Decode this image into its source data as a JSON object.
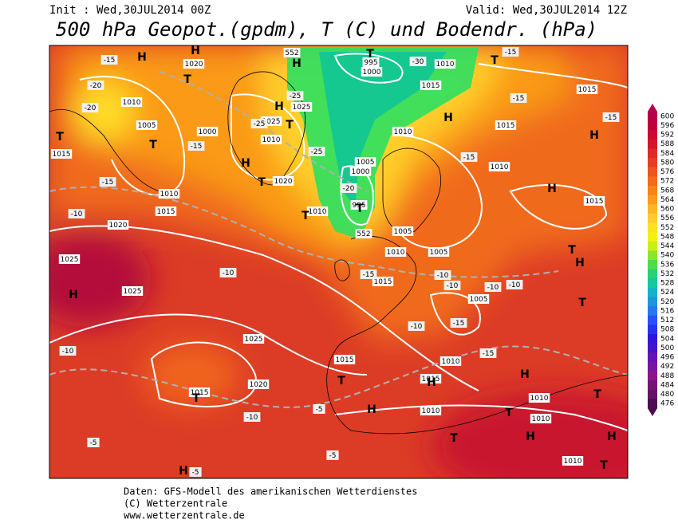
{
  "header": {
    "init": "Init : Wed,30JUL2014 00Z",
    "valid": "Valid: Wed,30JUL2014 12Z",
    "title": "500 hPa Geopot.(gpdm), T (C) und Bodendr. (hPa)"
  },
  "colorbar": {
    "labels": [
      "600",
      "596",
      "592",
      "588",
      "584",
      "580",
      "576",
      "572",
      "568",
      "564",
      "560",
      "556",
      "552",
      "548",
      "544",
      "540",
      "536",
      "532",
      "528",
      "524",
      "520",
      "516",
      "512",
      "508",
      "504",
      "500",
      "496",
      "492",
      "488",
      "484",
      "480",
      "476"
    ],
    "colors": [
      "#b4004a",
      "#c0003c",
      "#cc0a32",
      "#d6142a",
      "#de2a28",
      "#e63e24",
      "#ee5420",
      "#f46a1a",
      "#f88214",
      "#fc9a18",
      "#ffb424",
      "#ffcc2c",
      "#ffe020",
      "#f4f010",
      "#c8f014",
      "#8ce628",
      "#50dc46",
      "#28d278",
      "#14c8a0",
      "#14b4c8",
      "#1e96dc",
      "#2878f0",
      "#2850ff",
      "#2832f0",
      "#3214dc",
      "#4614c8",
      "#6414b4",
      "#7814a0",
      "#8c148c",
      "#781478",
      "#641464",
      "#500a50"
    ]
  },
  "map": {
    "isobar_labels": [
      "1020",
      "1010",
      "1005",
      "1000",
      "1010",
      "1025",
      "1025",
      "1020",
      "1010",
      "1015",
      "1020",
      "1025",
      "1025",
      "1025",
      "1020",
      "1015",
      "995",
      "1000",
      "1010",
      "1015",
      "1010",
      "1005",
      "1000",
      "995",
      "1010",
      "1005",
      "1010",
      "1005",
      "1015",
      "1005",
      "1015",
      "1015",
      "1010",
      "1010",
      "1010",
      "1010",
      "1010",
      "1015",
      "1010",
      "1015",
      "1015",
      "1015",
      "552",
      "552"
    ],
    "temperature_labels": [
      "-15",
      "-20",
      "-20",
      "-15",
      "-10",
      "-10",
      "-10",
      "-10",
      "-5",
      "-5",
      "-5",
      "-30",
      "-25",
      "-25",
      "-25",
      "-20",
      "-15",
      "-10",
      "-10",
      "-10",
      "-10",
      "-10",
      "-15",
      "-15",
      "-15",
      "-15",
      "-15",
      "-15",
      "-15",
      "-5"
    ],
    "pressure_systems": [
      "H",
      "H",
      "T",
      "T",
      "T",
      "H",
      "H",
      "T",
      "T",
      "T",
      "H",
      "T",
      "T",
      "H",
      "T",
      "H",
      "H",
      "T",
      "H",
      "H",
      "T",
      "T",
      "H",
      "H",
      "T",
      "H",
      "T",
      "T",
      "H",
      "T",
      "H",
      "T",
      "H"
    ]
  },
  "footer": [
    "Daten: GFS-Modell des amerikanischen Wetterdienstes",
    "(C) Wetterzentrale",
    "www.wetterzentrale.de"
  ]
}
